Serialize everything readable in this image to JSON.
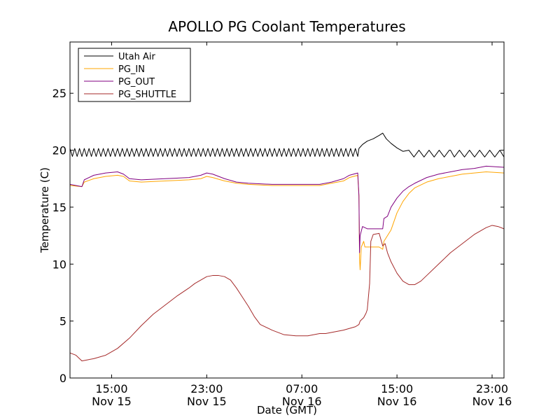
{
  "chart_data": {
    "type": "line",
    "title": "APOLLO PG Coolant Temperatures",
    "xlabel": "Date (GMT)",
    "ylabel": "Temperature (C)",
    "x_unit": "hours since Nov 15 11:00 GMT",
    "xlim": [
      0,
      36.5
    ],
    "ylim": [
      0,
      29.5
    ],
    "yticks": [
      0,
      5,
      10,
      15,
      20,
      25
    ],
    "xticks": [
      {
        "x": 3.5,
        "time": "15:00",
        "date": "Nov 15"
      },
      {
        "x": 11.5,
        "time": "23:00",
        "date": "Nov 15"
      },
      {
        "x": 19.5,
        "time": "07:00",
        "date": "Nov 16"
      },
      {
        "x": 27.5,
        "time": "15:00",
        "date": "Nov 16"
      },
      {
        "x": 35.5,
        "time": "23:00",
        "date": "Nov 16"
      }
    ],
    "legend_position": "top-left",
    "series": [
      {
        "name": "Utah Air",
        "color": "#000000",
        "oscillation": {
          "from": 0,
          "to": 24.3,
          "period": 0.4,
          "amplitude": 0.35
        },
        "oscillation2": {
          "from": 28.5,
          "to": 36.5,
          "period": 0.85,
          "amplitude": 0.3
        },
        "points": [
          [
            0,
            19.8
          ],
          [
            6,
            19.8
          ],
          [
            12,
            19.8
          ],
          [
            18,
            19.8
          ],
          [
            24.3,
            19.8
          ],
          [
            24.6,
            20.5
          ],
          [
            25,
            20.8
          ],
          [
            25.5,
            21.0
          ],
          [
            26,
            21.3
          ],
          [
            26.3,
            21.5
          ],
          [
            26.6,
            21.0
          ],
          [
            27,
            20.6
          ],
          [
            27.5,
            20.2
          ],
          [
            28,
            19.9
          ],
          [
            28.5,
            19.7
          ],
          [
            32,
            19.7
          ],
          [
            36.5,
            19.7
          ]
        ]
      },
      {
        "name": "PG_IN",
        "color": "#ffa500",
        "points": [
          [
            0,
            16.9
          ],
          [
            1,
            16.8
          ],
          [
            1.2,
            17.2
          ],
          [
            2,
            17.5
          ],
          [
            3,
            17.7
          ],
          [
            4,
            17.8
          ],
          [
            4.5,
            17.7
          ],
          [
            5,
            17.3
          ],
          [
            6,
            17.2
          ],
          [
            8,
            17.3
          ],
          [
            10,
            17.4
          ],
          [
            11,
            17.5
          ],
          [
            11.5,
            17.7
          ],
          [
            12,
            17.6
          ],
          [
            13,
            17.3
          ],
          [
            14,
            17.1
          ],
          [
            15,
            17.0
          ],
          [
            17,
            16.9
          ],
          [
            19,
            16.9
          ],
          [
            21,
            16.9
          ],
          [
            22,
            17.1
          ],
          [
            23,
            17.3
          ],
          [
            23.5,
            17.6
          ],
          [
            24.2,
            17.8
          ],
          [
            24.3,
            16.0
          ],
          [
            24.35,
            10.5
          ],
          [
            24.4,
            9.5
          ],
          [
            24.5,
            11.5
          ],
          [
            24.7,
            12.0
          ],
          [
            24.8,
            11.5
          ],
          [
            25,
            11.5
          ],
          [
            25.5,
            11.5
          ],
          [
            26,
            11.5
          ],
          [
            26.3,
            11.3
          ],
          [
            26.4,
            12.0
          ],
          [
            27,
            13.0
          ],
          [
            27.5,
            14.5
          ],
          [
            28,
            15.5
          ],
          [
            28.5,
            16.2
          ],
          [
            29,
            16.7
          ],
          [
            30,
            17.2
          ],
          [
            31,
            17.5
          ],
          [
            32,
            17.7
          ],
          [
            33,
            17.9
          ],
          [
            34,
            18.0
          ],
          [
            35,
            18.1
          ],
          [
            36.5,
            18.0
          ]
        ]
      },
      {
        "name": "PG_OUT",
        "color": "#800080",
        "points": [
          [
            0,
            17.0
          ],
          [
            1,
            16.8
          ],
          [
            1.2,
            17.4
          ],
          [
            2,
            17.8
          ],
          [
            3,
            18.0
          ],
          [
            4,
            18.1
          ],
          [
            4.5,
            17.9
          ],
          [
            5,
            17.5
          ],
          [
            6,
            17.4
          ],
          [
            8,
            17.5
          ],
          [
            10,
            17.6
          ],
          [
            11,
            17.8
          ],
          [
            11.5,
            18.0
          ],
          [
            12,
            17.9
          ],
          [
            13,
            17.5
          ],
          [
            14,
            17.2
          ],
          [
            15,
            17.1
          ],
          [
            17,
            17.0
          ],
          [
            19,
            17.0
          ],
          [
            21,
            17.0
          ],
          [
            22,
            17.2
          ],
          [
            23,
            17.5
          ],
          [
            23.5,
            17.8
          ],
          [
            24.2,
            18.0
          ],
          [
            24.3,
            16.0
          ],
          [
            24.35,
            11.0
          ],
          [
            24.4,
            12.5
          ],
          [
            24.6,
            13.3
          ],
          [
            25,
            13.1
          ],
          [
            25.5,
            13.1
          ],
          [
            26,
            13.1
          ],
          [
            26.3,
            13.1
          ],
          [
            26.4,
            14.0
          ],
          [
            26.7,
            14.2
          ],
          [
            27,
            15.0
          ],
          [
            27.5,
            15.8
          ],
          [
            28,
            16.4
          ],
          [
            28.5,
            16.8
          ],
          [
            29,
            17.1
          ],
          [
            30,
            17.6
          ],
          [
            31,
            17.9
          ],
          [
            32,
            18.1
          ],
          [
            33,
            18.3
          ],
          [
            34,
            18.4
          ],
          [
            35,
            18.6
          ],
          [
            36.5,
            18.5
          ]
        ]
      },
      {
        "name": "PG_SHUTTLE",
        "color": "#a52a2a",
        "points": [
          [
            0,
            2.2
          ],
          [
            0.5,
            2.0
          ],
          [
            1,
            1.5
          ],
          [
            1.5,
            1.6
          ],
          [
            2,
            1.7
          ],
          [
            3,
            2.0
          ],
          [
            4,
            2.6
          ],
          [
            5,
            3.5
          ],
          [
            6,
            4.6
          ],
          [
            7,
            5.6
          ],
          [
            8,
            6.4
          ],
          [
            9,
            7.2
          ],
          [
            10,
            7.9
          ],
          [
            10.5,
            8.3
          ],
          [
            11,
            8.6
          ],
          [
            11.5,
            8.9
          ],
          [
            12,
            9.0
          ],
          [
            12.5,
            9.0
          ],
          [
            13,
            8.9
          ],
          [
            13.5,
            8.6
          ],
          [
            14,
            7.9
          ],
          [
            14.5,
            7.1
          ],
          [
            15,
            6.3
          ],
          [
            15.5,
            5.4
          ],
          [
            16,
            4.7
          ],
          [
            17,
            4.2
          ],
          [
            18,
            3.8
          ],
          [
            19,
            3.7
          ],
          [
            20,
            3.7
          ],
          [
            21,
            3.9
          ],
          [
            21.5,
            3.9
          ],
          [
            22,
            4.0
          ],
          [
            23,
            4.2
          ],
          [
            24,
            4.5
          ],
          [
            24.3,
            4.7
          ],
          [
            24.4,
            5.0
          ],
          [
            24.7,
            5.3
          ],
          [
            24.9,
            5.7
          ],
          [
            25,
            6.0
          ],
          [
            25.2,
            8.3
          ],
          [
            25.3,
            12.0
          ],
          [
            25.5,
            12.6
          ],
          [
            26,
            12.7
          ],
          [
            26.3,
            11.6
          ],
          [
            26.5,
            11.8
          ],
          [
            26.7,
            11.0
          ],
          [
            27,
            10.2
          ],
          [
            27.5,
            9.2
          ],
          [
            28,
            8.5
          ],
          [
            28.5,
            8.2
          ],
          [
            29,
            8.2
          ],
          [
            29.5,
            8.5
          ],
          [
            30,
            9.0
          ],
          [
            31,
            10.0
          ],
          [
            32,
            11.0
          ],
          [
            33,
            11.8
          ],
          [
            34,
            12.6
          ],
          [
            35,
            13.2
          ],
          [
            35.5,
            13.4
          ],
          [
            36,
            13.3
          ],
          [
            36.5,
            13.1
          ]
        ]
      }
    ]
  }
}
